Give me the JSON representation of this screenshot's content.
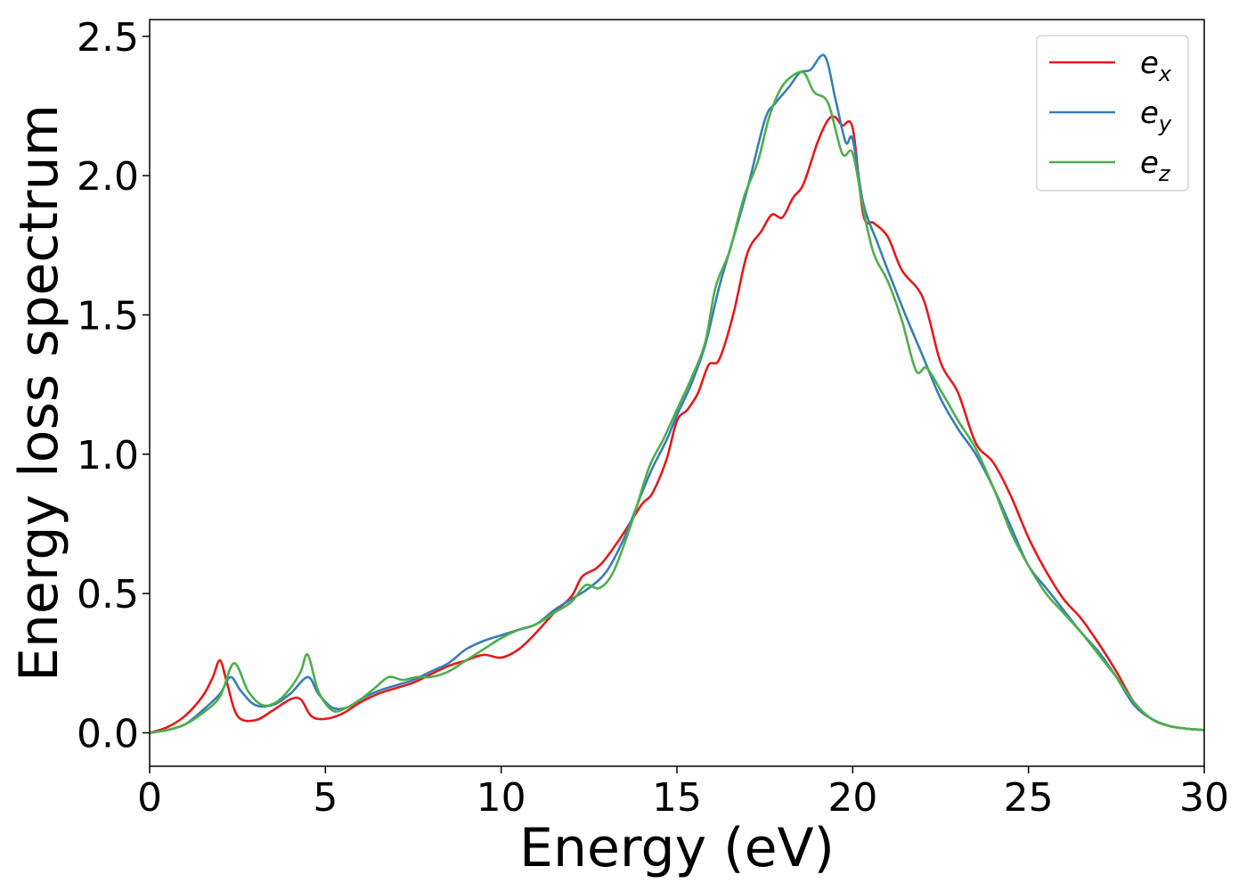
{
  "chart_data": {
    "type": "line",
    "xlabel": "Energy (eV)",
    "ylabel": "Energy loss spectrum",
    "xlim": [
      0,
      30
    ],
    "ylim": [
      -0.12,
      2.56
    ],
    "x_ticks": [
      0,
      5,
      10,
      15,
      20,
      25,
      30
    ],
    "x_tick_labels": [
      "0",
      "5",
      "10",
      "15",
      "20",
      "25",
      "30"
    ],
    "y_ticks": [
      0.0,
      0.5,
      1.0,
      1.5,
      2.0,
      2.5
    ],
    "y_tick_labels": [
      "0.0",
      "0.5",
      "1.0",
      "1.5",
      "2.0",
      "2.5"
    ],
    "grid": false,
    "legend": "top-right",
    "series": [
      {
        "name": "e",
        "subscript": "x",
        "color": "#e41a1c",
        "x": [
          0,
          0.5,
          1.0,
          1.5,
          1.8,
          2.0,
          2.2,
          2.5,
          3.0,
          3.5,
          4.0,
          4.3,
          4.6,
          5.0,
          5.5,
          6.0,
          6.5,
          7.0,
          7.5,
          8.0,
          8.5,
          9.0,
          9.5,
          10.0,
          10.5,
          11.0,
          11.5,
          12.0,
          12.3,
          12.7,
          13.0,
          13.5,
          14.0,
          14.3,
          14.7,
          15.0,
          15.3,
          15.6,
          15.9,
          16.2,
          16.6,
          17.0,
          17.4,
          17.7,
          18.0,
          18.3,
          18.6,
          19.0,
          19.3,
          19.5,
          19.7,
          20.0,
          20.3,
          20.6,
          21.0,
          21.4,
          22.0,
          22.5,
          23.0,
          23.5,
          24.0,
          24.5,
          25.0,
          25.5,
          26.0,
          26.5,
          27.0,
          27.5,
          28.0,
          28.5,
          29.0,
          29.5,
          30.0
        ],
        "y": [
          0,
          0.02,
          0.06,
          0.13,
          0.2,
          0.26,
          0.18,
          0.06,
          0.045,
          0.08,
          0.12,
          0.12,
          0.06,
          0.05,
          0.07,
          0.11,
          0.14,
          0.16,
          0.18,
          0.21,
          0.24,
          0.26,
          0.28,
          0.27,
          0.3,
          0.36,
          0.43,
          0.49,
          0.56,
          0.59,
          0.63,
          0.72,
          0.82,
          0.86,
          0.98,
          1.12,
          1.16,
          1.22,
          1.32,
          1.34,
          1.5,
          1.72,
          1.8,
          1.86,
          1.85,
          1.92,
          1.97,
          2.12,
          2.2,
          2.21,
          2.18,
          2.17,
          1.86,
          1.83,
          1.78,
          1.66,
          1.56,
          1.33,
          1.22,
          1.04,
          0.97,
          0.85,
          0.7,
          0.58,
          0.48,
          0.41,
          0.32,
          0.22,
          0.11,
          0.05,
          0.025,
          0.015,
          0.01
        ]
      },
      {
        "name": "e",
        "subscript": "y",
        "color": "#377eb8",
        "x": [
          0,
          0.5,
          1.0,
          1.5,
          2.0,
          2.3,
          2.6,
          3.0,
          3.5,
          4.0,
          4.5,
          4.8,
          5.2,
          5.6,
          6.0,
          6.5,
          7.0,
          7.5,
          8.0,
          8.5,
          9.0,
          9.5,
          10.0,
          10.5,
          11.0,
          11.5,
          12.0,
          12.5,
          13.0,
          13.5,
          14.0,
          14.3,
          14.7,
          15.0,
          15.4,
          15.8,
          16.2,
          16.5,
          17.0,
          17.5,
          17.8,
          18.2,
          18.5,
          18.8,
          19.2,
          19.5,
          19.8,
          20.0,
          20.3,
          20.7,
          21.0,
          21.5,
          22.0,
          22.5,
          23.0,
          23.5,
          24.0,
          24.5,
          25.0,
          25.5,
          26.0,
          26.5,
          27.0,
          27.5,
          28.0,
          28.5,
          29.0,
          29.5,
          30.0
        ],
        "y": [
          0,
          0.01,
          0.03,
          0.08,
          0.14,
          0.2,
          0.15,
          0.1,
          0.1,
          0.14,
          0.2,
          0.14,
          0.09,
          0.09,
          0.12,
          0.15,
          0.17,
          0.19,
          0.22,
          0.25,
          0.3,
          0.33,
          0.35,
          0.37,
          0.39,
          0.44,
          0.48,
          0.52,
          0.58,
          0.7,
          0.86,
          0.95,
          1.05,
          1.14,
          1.25,
          1.39,
          1.6,
          1.73,
          1.95,
          2.2,
          2.26,
          2.32,
          2.37,
          2.38,
          2.43,
          2.28,
          2.12,
          2.13,
          1.9,
          1.76,
          1.66,
          1.5,
          1.35,
          1.2,
          1.09,
          1.0,
          0.88,
          0.74,
          0.6,
          0.52,
          0.44,
          0.36,
          0.29,
          0.2,
          0.1,
          0.05,
          0.025,
          0.015,
          0.01
        ]
      },
      {
        "name": "e",
        "subscript": "z",
        "color": "#4daf4a",
        "x": [
          0,
          0.5,
          1.0,
          1.5,
          2.0,
          2.4,
          2.8,
          3.2,
          3.6,
          4.0,
          4.3,
          4.5,
          4.8,
          5.2,
          5.6,
          6.0,
          6.4,
          6.8,
          7.2,
          7.6,
          8.0,
          8.5,
          9.0,
          9.5,
          10.0,
          10.5,
          11.0,
          11.5,
          12.0,
          12.4,
          12.8,
          13.2,
          13.7,
          14.2,
          14.6,
          15.0,
          15.4,
          15.8,
          16.1,
          16.5,
          16.9,
          17.3,
          17.6,
          17.9,
          18.2,
          18.6,
          18.9,
          19.3,
          19.7,
          20.0,
          20.3,
          20.6,
          21.0,
          21.4,
          21.8,
          22.1,
          22.5,
          23.0,
          23.5,
          24.0,
          24.5,
          25.0,
          25.5,
          26.0,
          26.5,
          27.0,
          27.5,
          28.0,
          28.5,
          29.0,
          29.5,
          30.0
        ],
        "y": [
          0,
          0.01,
          0.03,
          0.07,
          0.13,
          0.25,
          0.15,
          0.1,
          0.11,
          0.16,
          0.22,
          0.28,
          0.15,
          0.08,
          0.09,
          0.12,
          0.16,
          0.2,
          0.19,
          0.2,
          0.2,
          0.22,
          0.26,
          0.3,
          0.34,
          0.37,
          0.39,
          0.43,
          0.47,
          0.53,
          0.52,
          0.58,
          0.75,
          0.95,
          1.05,
          1.16,
          1.27,
          1.4,
          1.6,
          1.73,
          1.92,
          2.05,
          2.2,
          2.3,
          2.35,
          2.37,
          2.3,
          2.26,
          2.08,
          2.08,
          1.88,
          1.72,
          1.62,
          1.48,
          1.3,
          1.31,
          1.23,
          1.12,
          1.02,
          0.88,
          0.72,
          0.6,
          0.5,
          0.43,
          0.36,
          0.28,
          0.2,
          0.11,
          0.05,
          0.025,
          0.015,
          0.01
        ]
      }
    ]
  }
}
